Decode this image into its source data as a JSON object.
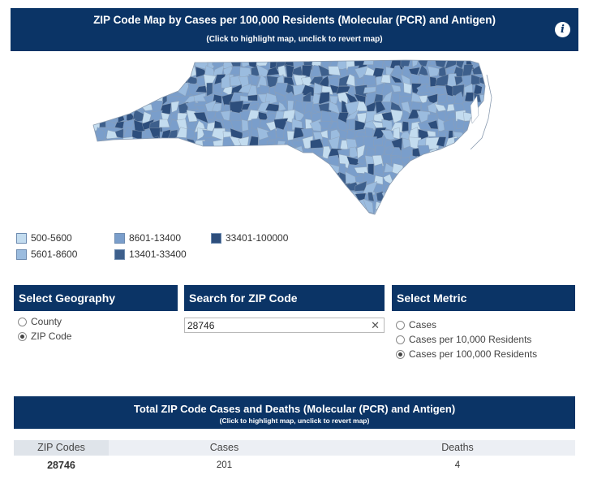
{
  "header": {
    "title": "ZIP Code Map by Cases per 100,000 Residents (Molecular (PCR) and Antigen)",
    "subtitle": "(Click to highlight map, unclick to revert map)",
    "info_icon": "info-icon",
    "info_label": "i"
  },
  "colors": {
    "header_bg": "#0b3466",
    "bin1": "#c3dcef",
    "bin2": "#9bbcdf",
    "bin3": "#7a9ecb",
    "bin4": "#3d5f8c",
    "bin5": "#2d4e7c"
  },
  "legend": [
    {
      "label": "500-5600",
      "color": "#c3dcef"
    },
    {
      "label": "5601-8600",
      "color": "#9bbcdf"
    },
    {
      "label": "8601-13400",
      "color": "#7a9ecb"
    },
    {
      "label": "13401-33400",
      "color": "#3d5f8c"
    },
    {
      "label": "33401-100000",
      "color": "#2d4e7c"
    }
  ],
  "geography": {
    "title": "Select Geography",
    "options": [
      {
        "label": "County",
        "checked": false
      },
      {
        "label": "ZIP Code",
        "checked": true
      }
    ]
  },
  "search": {
    "title": "Search for ZIP Code",
    "value": "28746",
    "clear_icon": "close-icon",
    "clear_glyph": "✕"
  },
  "metric": {
    "title": "Select Metric",
    "options": [
      {
        "label": "Cases",
        "checked": false
      },
      {
        "label": "Cases per 10,000 Residents",
        "checked": false
      },
      {
        "label": "Cases per 100,000 Residents",
        "checked": true
      }
    ]
  },
  "totals": {
    "title": "Total ZIP Code Cases and Deaths (Molecular (PCR) and Antigen)",
    "subtitle": "(Click to highlight map, unclick to revert map)",
    "columns": [
      "ZIP Codes",
      "Cases",
      "Deaths"
    ],
    "row": {
      "zip": "28746",
      "cases": "201",
      "deaths": "4"
    }
  }
}
